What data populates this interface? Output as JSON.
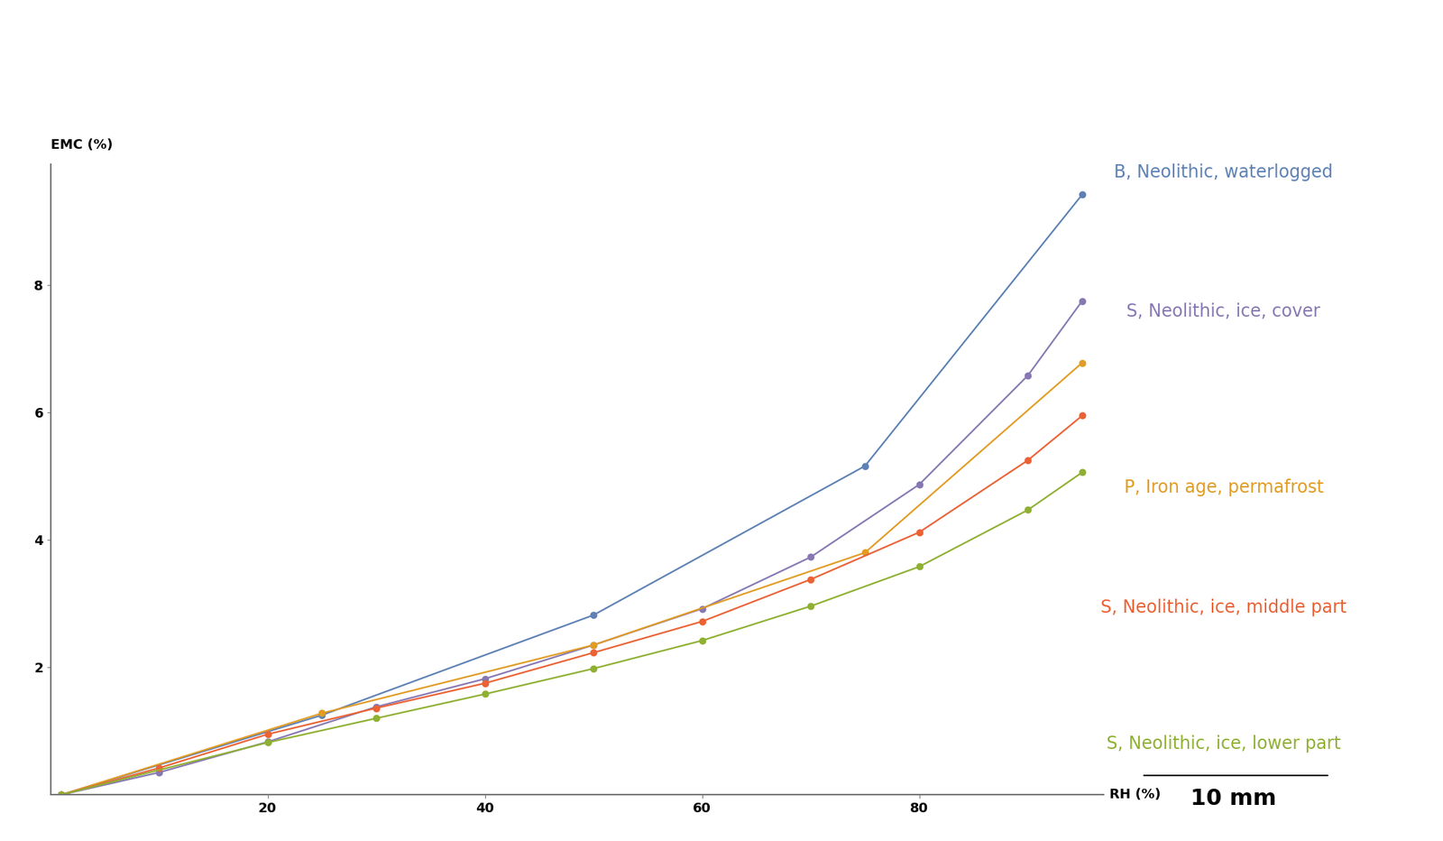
{
  "chart_data": {
    "type": "line",
    "x_label": "RH (%)",
    "y_label": "EMC (%)",
    "xlim": [
      0,
      97
    ],
    "ylim": [
      0,
      9.9
    ],
    "xticks": [
      20,
      40,
      60,
      80
    ],
    "yticks": [
      2,
      4,
      6,
      8
    ],
    "grid": false,
    "marker": "o",
    "line_style": "solid",
    "scale_label": "10 mm",
    "series": [
      {
        "name": "B, Neolithic, waterlogged",
        "color": "#5e81b5",
        "x": [
          1,
          25,
          50,
          75,
          95
        ],
        "values": [
          0,
          1.25,
          2.82,
          5.16,
          9.42
        ]
      },
      {
        "name": "S, Neolithic, ice, cover",
        "color": "#8778b3",
        "x": [
          1,
          10,
          20,
          30,
          40,
          50,
          60,
          70,
          80,
          90,
          95
        ],
        "values": [
          0,
          0.35,
          0.83,
          1.38,
          1.82,
          2.35,
          2.92,
          3.73,
          4.87,
          6.58,
          7.75
        ]
      },
      {
        "name": "P, Iron age, permafrost",
        "color": "#e19c24",
        "x": [
          1,
          25,
          50,
          75,
          95
        ],
        "values": [
          0,
          1.28,
          2.35,
          3.8,
          6.78
        ]
      },
      {
        "name": "S, Neolithic, ice, middle part",
        "color": "#eb6235",
        "x": [
          1,
          10,
          20,
          30,
          40,
          50,
          60,
          70,
          80,
          90,
          95
        ],
        "values": [
          0,
          0.42,
          0.95,
          1.36,
          1.75,
          2.23,
          2.72,
          3.38,
          4.12,
          5.25,
          5.95
        ]
      },
      {
        "name": "S, Neolithic, ice, lower part",
        "color": "#8fb032",
        "x": [
          1,
          20,
          30,
          40,
          50,
          60,
          70,
          80,
          90,
          95
        ],
        "values": [
          0,
          0.82,
          1.2,
          1.58,
          1.98,
          2.42,
          2.96,
          3.58,
          4.47,
          5.06
        ]
      }
    ]
  }
}
